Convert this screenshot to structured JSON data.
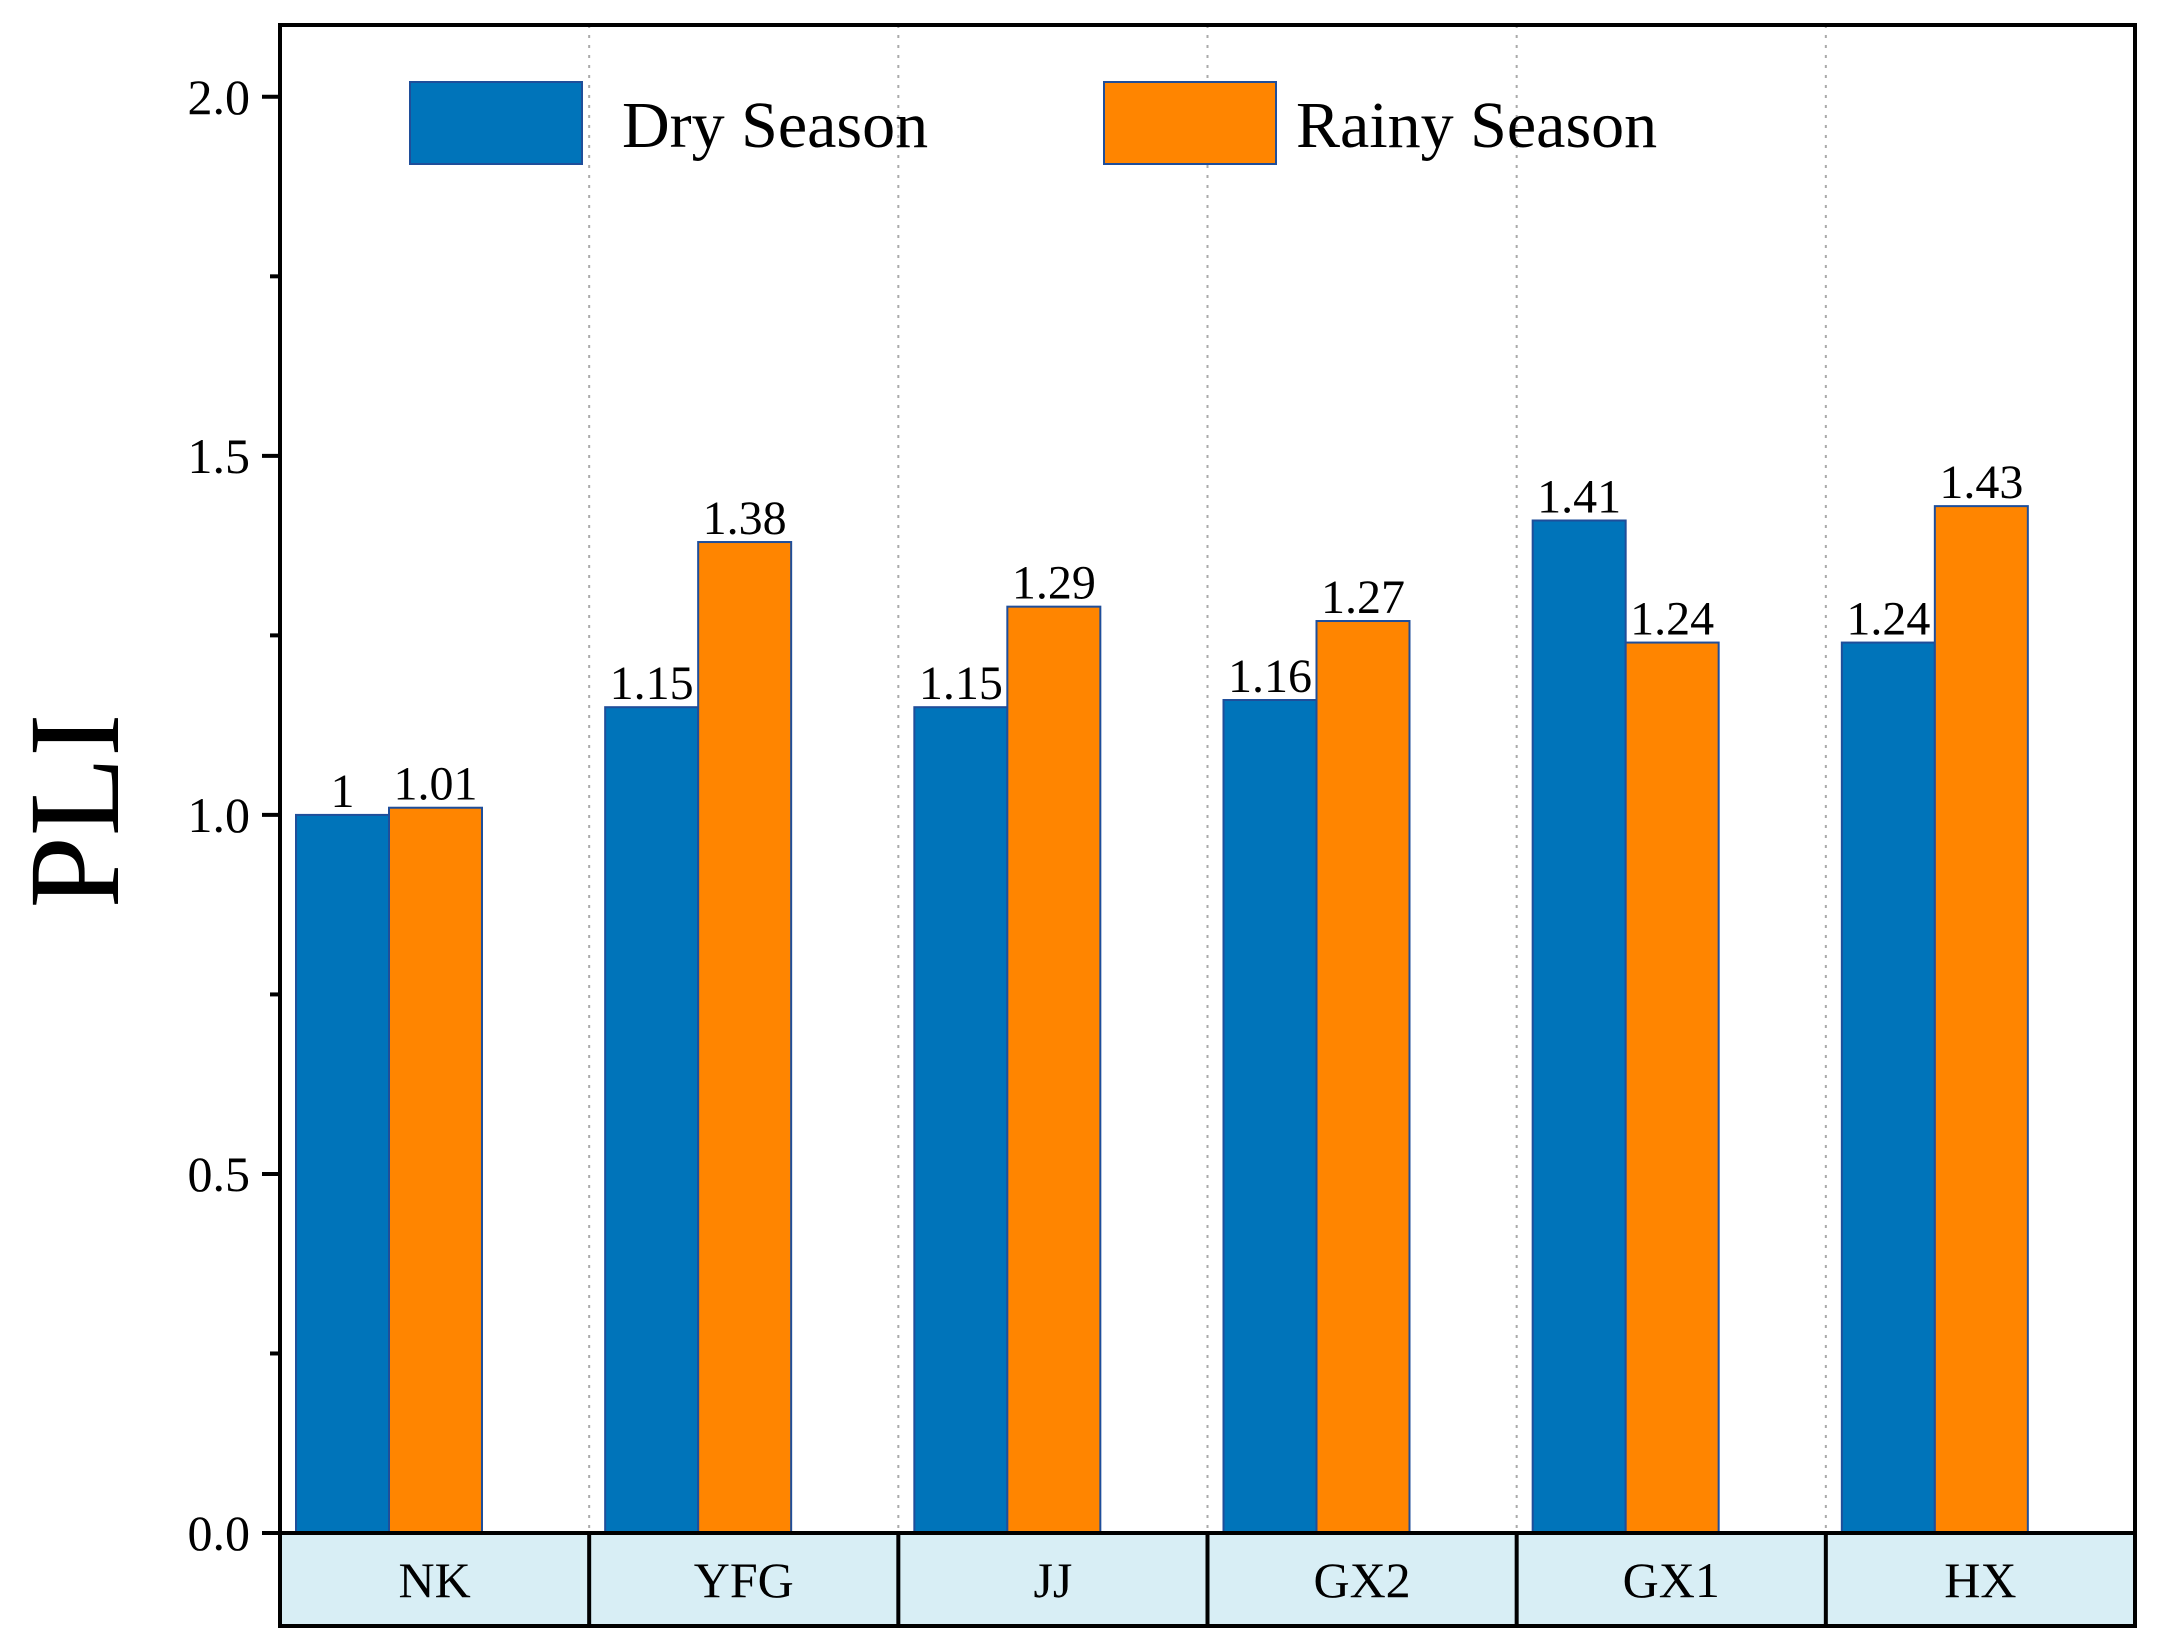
{
  "chart_data": {
    "type": "bar",
    "title": "",
    "xlabel": "",
    "ylabel": "PLI",
    "ylim": [
      0,
      2.1
    ],
    "yticks": [
      "0.0",
      "0.5",
      "1.0",
      "1.5",
      "2.0"
    ],
    "categories": [
      "NK",
      "YFG",
      "JJ",
      "GX2",
      "GX1",
      "HX"
    ],
    "series": [
      {
        "name": "Dry Season",
        "color": "#0074BA",
        "values": [
          1,
          1.15,
          1.15,
          1.16,
          1.41,
          1.24
        ],
        "labels": [
          "1",
          "1.15",
          "1.15",
          "1.16",
          "1.41",
          "1.24"
        ]
      },
      {
        "name": "Rainy Season",
        "color": "#FF8500",
        "values": [
          1.01,
          1.38,
          1.29,
          1.27,
          1.24,
          1.43
        ],
        "labels": [
          "1.01",
          "1.38",
          "1.29",
          "1.27",
          "1.24",
          "1.43"
        ]
      }
    ],
    "grid": "vertical dotted",
    "legend_position": "top"
  },
  "colors": {
    "category_band": "#D8EEF5",
    "grid": "#AAAAAA",
    "axis": "#000000"
  }
}
